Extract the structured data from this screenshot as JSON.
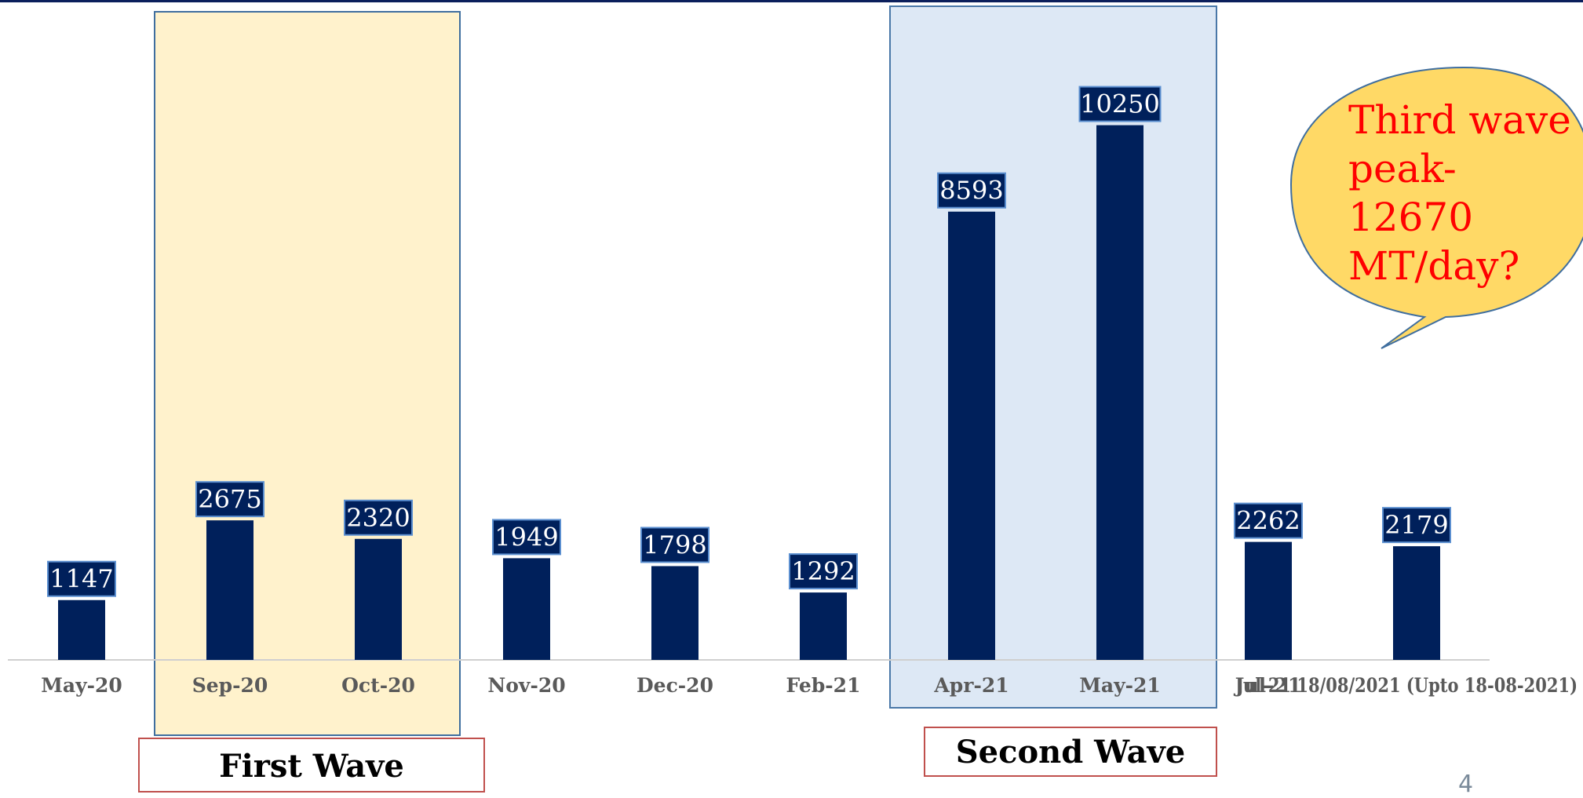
{
  "chart_data": {
    "type": "bar",
    "categories": [
      "May-20",
      "Sep-20",
      "Oct-20",
      "Nov-20",
      "Dec-20",
      "Feb-21",
      "Apr-21",
      "May-21",
      "Jul-21",
      "Upto 18/08/2021 (Upto 18-08-2021)"
    ],
    "category_labels_visible": [
      "May-20",
      "Sep-20",
      "Oct-20",
      "Nov-20",
      "Dec-20",
      "Feb-21",
      "Apr-21",
      "May-21",
      "Jul-21",
      "Jul-21 18/08/2021 (Upto 18-08-2021)"
    ],
    "values": [
      1147,
      2675,
      2320,
      1949,
      1798,
      1292,
      8593,
      10250,
      2262,
      2179
    ],
    "ylim": [
      0,
      12650
    ],
    "bar_color": "#00205b",
    "grid": false,
    "legend": "none",
    "data_labels": true
  },
  "annotations": {
    "first_wave": "First Wave",
    "second_wave": "Second Wave",
    "bubble": [
      "Third wave",
      "peak-",
      "12670",
      "MT/day?"
    ]
  },
  "colors": {
    "first_wave_band": "#fff2cc",
    "second_wave_band": "#dde8f5",
    "bubble_fill": "#ffd966",
    "bubble_text": "#ff0000",
    "label_box_border": "#c0504d"
  },
  "page_number": "4"
}
